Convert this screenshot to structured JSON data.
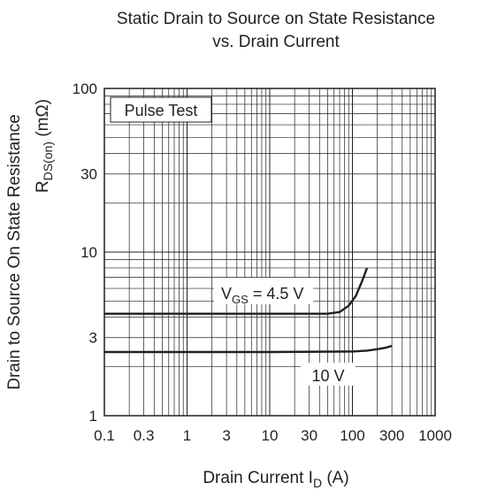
{
  "chart_data": {
    "type": "line",
    "title_line1": "Static Drain to Source on State Resistance",
    "title_line2": "vs. Drain Current",
    "xlabel": "Drain Current",
    "xlabel_symbol": "I",
    "xlabel_symbol_sub": "D",
    "xlabel_unit": "(A)",
    "ylabel_line1": "Drain to Source On State Resistance",
    "ylabel_symbol": "R",
    "ylabel_symbol_sub": "DS(on)",
    "ylabel_unit": "(mΩ)",
    "x_scale": "log",
    "y_scale": "log",
    "xlim": [
      0.1,
      1000
    ],
    "ylim": [
      1,
      100
    ],
    "x_ticks": [
      {
        "value": 0.1,
        "label": "0.1"
      },
      {
        "value": 0.3,
        "label": "0.3"
      },
      {
        "value": 1,
        "label": "1"
      },
      {
        "value": 3,
        "label": "3"
      },
      {
        "value": 10,
        "label": "10"
      },
      {
        "value": 30,
        "label": "30"
      },
      {
        "value": 100,
        "label": "100"
      },
      {
        "value": 300,
        "label": "300"
      },
      {
        "value": 1000,
        "label": "1000"
      }
    ],
    "y_ticks": [
      {
        "value": 1,
        "label": "1"
      },
      {
        "value": 3,
        "label": "3"
      },
      {
        "value": 10,
        "label": "10"
      },
      {
        "value": 30,
        "label": "30"
      },
      {
        "value": 100,
        "label": "100"
      }
    ],
    "grid": true,
    "annotation_box": "Pulse Test",
    "series": [
      {
        "label_main": "V",
        "label_sub": "GS",
        "label_tail": " = 4.5 V",
        "x": [
          0.1,
          1,
          10,
          50,
          70,
          90,
          110,
          130,
          150
        ],
        "y": [
          4.2,
          4.2,
          4.2,
          4.2,
          4.3,
          4.7,
          5.4,
          6.6,
          8.0
        ]
      },
      {
        "label_main": "10 V",
        "label_sub": "",
        "label_tail": "",
        "x": [
          0.1,
          1,
          10,
          100,
          150,
          200,
          250,
          300
        ],
        "y": [
          2.45,
          2.45,
          2.45,
          2.47,
          2.5,
          2.55,
          2.6,
          2.67
        ]
      }
    ]
  }
}
